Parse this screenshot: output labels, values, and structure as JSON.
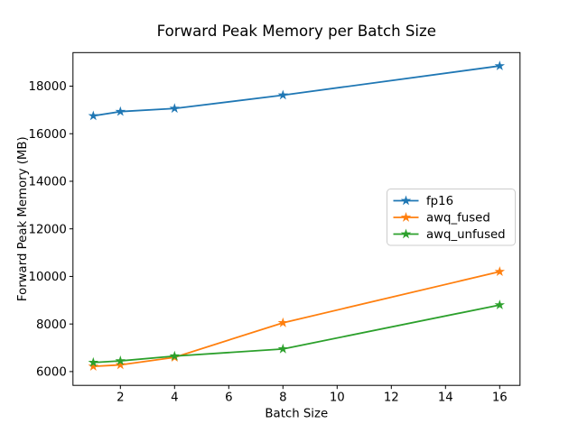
{
  "chart_data": {
    "type": "line",
    "title": "Forward Peak Memory per Batch Size",
    "xlabel": "Batch Size",
    "ylabel": "Forward Peak Memory (MB)",
    "x": [
      1,
      2,
      4,
      8,
      16
    ],
    "series": [
      {
        "name": "fp16",
        "color": "#1f77b4",
        "values": [
          16750,
          16930,
          17060,
          17620,
          18850
        ]
      },
      {
        "name": "awq_fused",
        "color": "#ff7f0e",
        "values": [
          6220,
          6280,
          6600,
          8050,
          10200
        ]
      },
      {
        "name": "awq_unfused",
        "color": "#2ca02c",
        "values": [
          6380,
          6450,
          6650,
          6950,
          8800
        ]
      }
    ],
    "xticks": [
      2,
      4,
      6,
      8,
      10,
      12,
      14,
      16
    ],
    "yticks": [
      6000,
      8000,
      10000,
      12000,
      14000,
      16000,
      18000
    ],
    "xlim": [
      0.25,
      16.75
    ],
    "ylim": [
      5420,
      19410
    ],
    "grid": false,
    "marker": "star",
    "legend_location": "center right",
    "colors": {
      "spine": "#000000",
      "legend_edge": "#cccccc",
      "background": "#ffffff"
    }
  }
}
